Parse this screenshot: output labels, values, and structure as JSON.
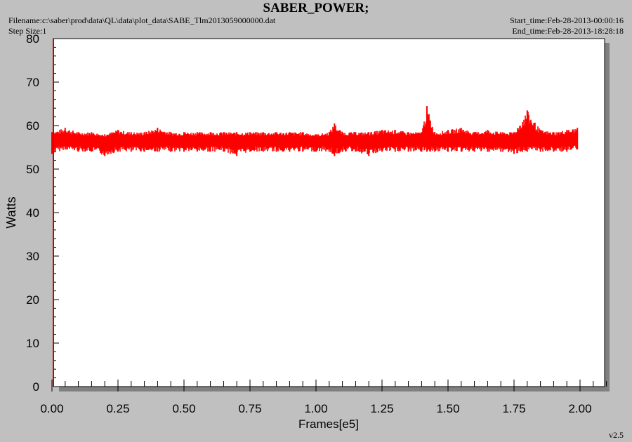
{
  "header": {
    "filename": "Filename:c:\\saber\\prod\\data\\QL\\data\\plot_data\\SABE_Tlm2013059000000.dat",
    "step_size": "Step Size:1",
    "start_time": "Start_time:Feb-28-2013-00:00:16",
    "end_time": "End_time:Feb-28-2013-18:28:18"
  },
  "version": "v2.5",
  "colors": {
    "series": "#ff0000",
    "background": "#c0c0c0",
    "plot_area": "#ffffff"
  },
  "chart_data": {
    "type": "line",
    "title": "SABER_POWER;",
    "xlabel": "Frames[e5]",
    "ylabel": "Watts",
    "xlim": [
      0,
      2.1
    ],
    "ylim": [
      0,
      80
    ],
    "xticks": [
      0.0,
      0.25,
      0.5,
      0.75,
      1.0,
      1.25,
      1.5,
      1.75,
      2.0
    ],
    "xtick_labels": [
      "0.00",
      "0.25",
      "0.50",
      "0.75",
      "1.00",
      "1.25",
      "1.50",
      "1.75",
      "2.00"
    ],
    "yticks": [
      0,
      10,
      20,
      30,
      40,
      50,
      60,
      70,
      80
    ],
    "ytick_labels": [
      "0",
      "10",
      "20",
      "30",
      "40",
      "50",
      "60",
      "70",
      "80"
    ],
    "grid": false,
    "series": [
      {
        "color": "#ff0000",
        "x": [
          0.0,
          0.05,
          0.1,
          0.15,
          0.2,
          0.25,
          0.3,
          0.35,
          0.4,
          0.45,
          0.5,
          0.55,
          0.6,
          0.65,
          0.7,
          0.75,
          0.8,
          0.85,
          0.9,
          0.95,
          1.0,
          1.05,
          1.07,
          1.1,
          1.15,
          1.2,
          1.25,
          1.3,
          1.35,
          1.4,
          1.42,
          1.45,
          1.5,
          1.55,
          1.6,
          1.65,
          1.7,
          1.75,
          1.8,
          1.85,
          1.9,
          1.95,
          1.99
        ],
        "y_max": [
          58.5,
          59.5,
          58.5,
          58.5,
          58.0,
          59.0,
          58.5,
          58.5,
          59.5,
          58.5,
          58.5,
          58.5,
          58.5,
          58.5,
          58.5,
          58.5,
          58.5,
          58.5,
          58.5,
          58.5,
          58.0,
          58.5,
          60.5,
          58.5,
          58.5,
          58.5,
          59.0,
          59.0,
          58.5,
          58.5,
          64.5,
          58.5,
          59.0,
          59.5,
          58.5,
          59.0,
          58.5,
          58.5,
          63.5,
          59.0,
          58.5,
          59.0,
          59.5
        ],
        "y_min": [
          53.5,
          54.5,
          54.0,
          54.0,
          53.0,
          54.0,
          54.0,
          54.0,
          54.0,
          54.0,
          54.0,
          54.0,
          54.0,
          54.0,
          53.0,
          54.0,
          54.0,
          54.0,
          54.0,
          54.0,
          54.0,
          54.0,
          53.0,
          54.0,
          54.0,
          53.0,
          54.0,
          54.0,
          54.0,
          54.0,
          54.0,
          54.0,
          54.0,
          54.0,
          54.0,
          54.0,
          54.0,
          53.5,
          54.0,
          54.0,
          54.0,
          54.0,
          54.5
        ]
      }
    ]
  }
}
